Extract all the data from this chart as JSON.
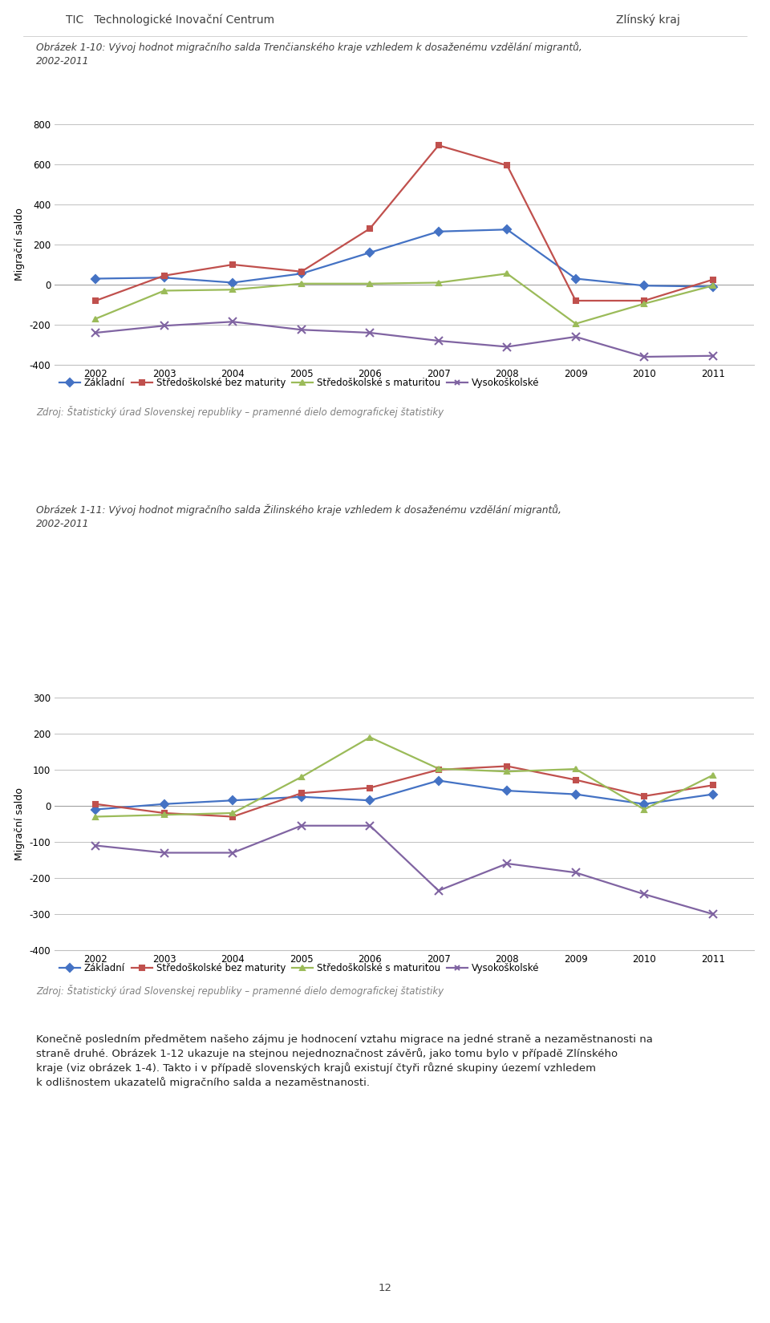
{
  "years": [
    2002,
    2003,
    2004,
    2005,
    2006,
    2007,
    2008,
    2009,
    2010,
    2011
  ],
  "chart1_title_line1": "Obrázek 1-10: Vývoj hodnot migračního salda Trenčianského kraje vzhledem k dosaženému vzdělání migrantů,",
  "chart1_title_line2": "2002-2011",
  "chart1_zakladni": [
    30,
    35,
    10,
    55,
    160,
    265,
    275,
    30,
    -5,
    -10
  ],
  "chart1_stredni_bez": [
    -80,
    45,
    100,
    65,
    280,
    695,
    595,
    -80,
    -80,
    25
  ],
  "chart1_stredni_s": [
    -170,
    -30,
    -25,
    5,
    5,
    10,
    55,
    -195,
    -95,
    -5
  ],
  "chart1_vysoko": [
    -240,
    -205,
    -185,
    -225,
    -240,
    -280,
    -310,
    -260,
    -360,
    -355
  ],
  "chart1_ylim": [
    -400,
    800
  ],
  "chart1_yticks": [
    -400,
    -200,
    0,
    200,
    400,
    600,
    800
  ],
  "chart2_title_line1": "Obrázek 1-11: Vývoj hodnot migračního salda Žilinského kraje vzhledem k dosaženému vzdělání migrantů,",
  "chart2_title_line2": "2002-2011",
  "chart2_zakladni": [
    -10,
    5,
    15,
    25,
    15,
    70,
    42,
    32,
    5,
    32
  ],
  "chart2_stredni_bez": [
    5,
    -20,
    -30,
    35,
    50,
    100,
    110,
    72,
    27,
    57
  ],
  "chart2_stredni_s": [
    -30,
    -25,
    -20,
    80,
    190,
    103,
    95,
    102,
    -10,
    85
  ],
  "chart2_vysoko": [
    -110,
    -130,
    -130,
    -55,
    -55,
    -235,
    -160,
    -185,
    -245,
    -300
  ],
  "chart2_ylim": [
    -400,
    300
  ],
  "chart2_yticks": [
    -400,
    -300,
    -200,
    -100,
    0,
    100,
    200,
    300
  ],
  "color_zakladni": "#4472C4",
  "color_stredni_bez": "#C0504D",
  "color_stredni_s": "#9BBB59",
  "color_vysoko": "#8064A2",
  "legend_labels": [
    "Základní",
    "Středoškolské bez maturity",
    "Středoškolské s maturitou",
    "Vysokoškolské"
  ],
  "ylabel": "Migrační saldo",
  "source_text": "Zdroj: Štatistický úrad Slovenskej republiky – pramenné dielo demografickej štatistiky",
  "bottom_text": "Konečně posledním předmětem našeho zájmu je hodnocení vztahu migrace na jedné straně a nezaměstnanosti na straně druhé. Obrázek 1-12 ukazuje na stejnou nejednoznačnost závěrů, jako tomu bylo v případě Zlínského kraje (viz obrázek 1-4). Takto i v případě slovenských krajů existují čtyři různé skupiny úezemí vzhledem k odlišnostem ukazatelů migračního salda a nezaměstnanosti.",
  "header_left": "TIC   Technologické Inovační Centrum",
  "header_right": "Zlínský kraj",
  "page_number": "12"
}
